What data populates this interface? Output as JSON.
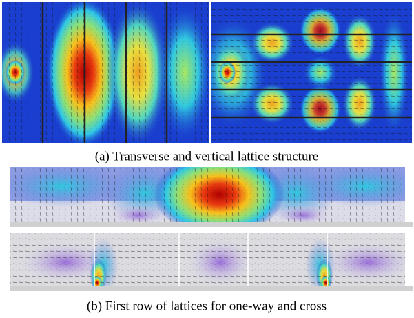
{
  "figure": {
    "caption_a": "(a) Transverse and vertical lattice structure",
    "caption_b": "(b) First row of lattices for one-way and cross"
  }
}
